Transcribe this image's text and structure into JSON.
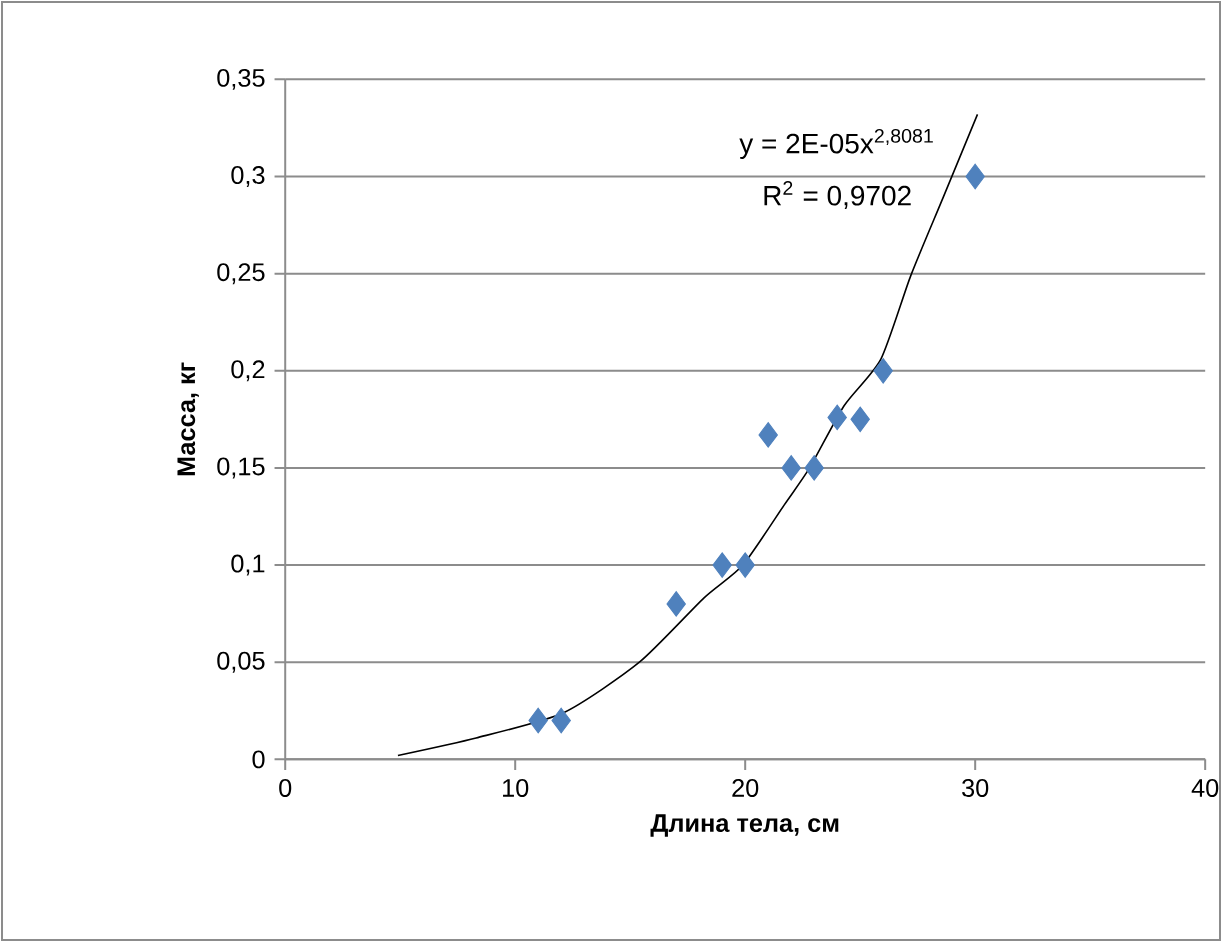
{
  "chart_data": {
    "type": "scatter",
    "xlabel": "Длина тела, см",
    "ylabel": "Масса, кг",
    "xlim": [
      0,
      40
    ],
    "xticks": [
      0,
      10,
      20,
      30,
      40
    ],
    "ylim": [
      0,
      0.35
    ],
    "yticks": [
      0,
      {
        "value": 0.05,
        "label": "0,05"
      },
      {
        "value": 0.1,
        "label": "0,1"
      },
      {
        "value": 0.15,
        "label": "0,15"
      },
      {
        "value": 0.2,
        "label": "0,2"
      },
      {
        "value": 0.25,
        "label": "0,25"
      },
      {
        "value": 0.3,
        "label": "0,3"
      },
      {
        "value": 0.35,
        "label": "0,35"
      }
    ],
    "grid": "y",
    "marker": "diamond",
    "series": [
      {
        "color": "#4f81bd",
        "x": [
          11,
          12,
          17,
          19,
          20,
          21,
          22,
          23,
          24,
          25,
          26,
          30
        ],
        "values": [
          0.02,
          0.02,
          0.08,
          0.1,
          0.1,
          0.167,
          0.15,
          0.15,
          0.176,
          0.175,
          0.2,
          0.3
        ]
      },
      {
        "type": "line",
        "color": "#000000",
        "marker": "none",
        "x": [
          4.9,
          8.3,
          12.1,
          15.4,
          18.2,
          19.9,
          21.7,
          22.8,
          24.3,
          25.9,
          27.2,
          28.6,
          30.1
        ],
        "values": [
          0.002,
          0.011,
          0.024,
          0.05,
          0.083,
          0.1,
          0.131,
          0.15,
          0.182,
          0.206,
          0.249,
          0.289,
          0.332
        ]
      }
    ],
    "annotations": [
      "y = 2E-05x$^{2,8081}$",
      "R$^{2}$ = 0,9702"
    ]
  }
}
